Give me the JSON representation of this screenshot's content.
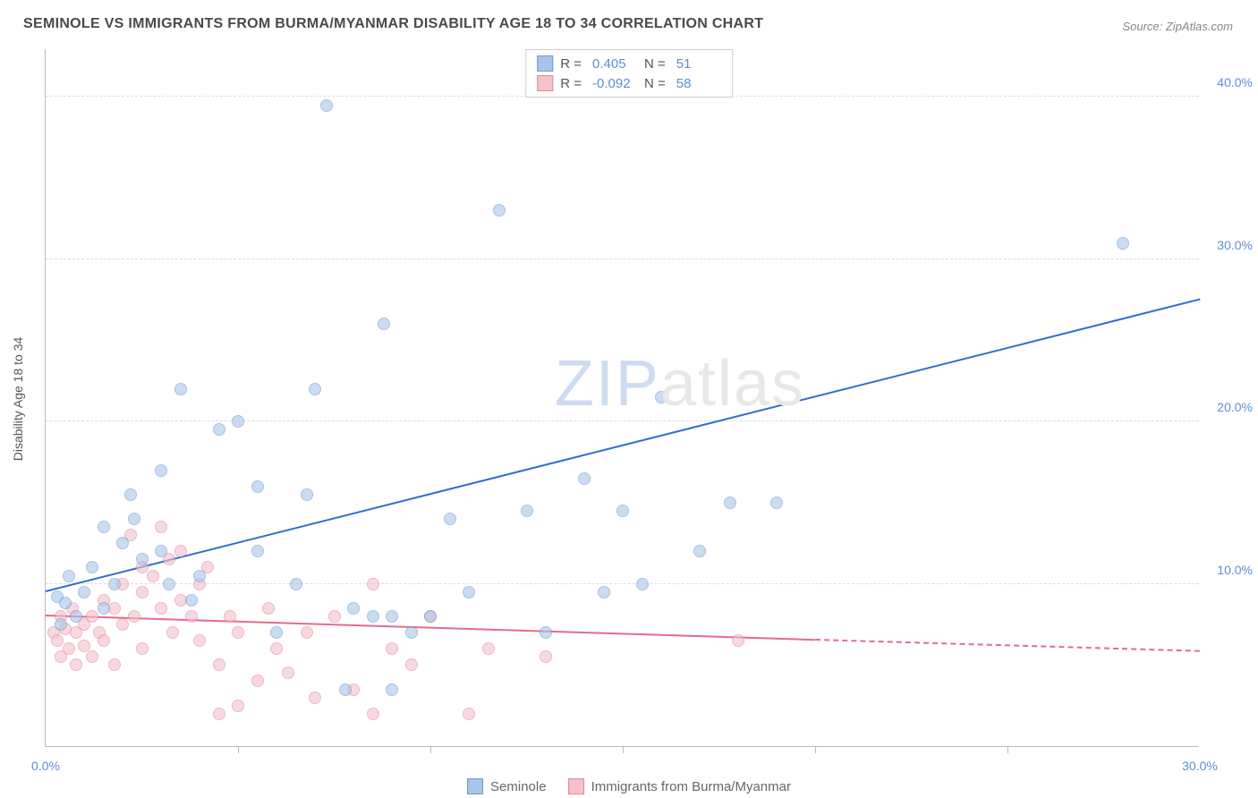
{
  "title": "SEMINOLE VS IMMIGRANTS FROM BURMA/MYANMAR DISABILITY AGE 18 TO 34 CORRELATION CHART",
  "source": "Source: ZipAtlas.com",
  "ylabel": "Disability Age 18 to 34",
  "watermark_part1": "ZIP",
  "watermark_part2": "atlas",
  "chart": {
    "type": "scatter",
    "xlim": [
      0,
      30
    ],
    "ylim": [
      0,
      43
    ],
    "ytick_positions": [
      10,
      20,
      30,
      40
    ],
    "ytick_labels": [
      "10.0%",
      "20.0%",
      "30.0%",
      "40.0%"
    ],
    "xtick_positions": [
      0,
      30
    ],
    "xtick_labels": [
      "0.0%",
      "30.0%"
    ],
    "xtick_marks": [
      5,
      10,
      15,
      20,
      25
    ],
    "grid_color": "#dddddd",
    "background_color": "#ffffff",
    "colors": {
      "series1": "#a8c5e8",
      "series1_border": "#6b9bd1",
      "series2": "#f5c1cb",
      "series2_border": "#e088a0",
      "line1": "#2e6fd0",
      "line2": "#e56b8a",
      "text": "#5b8dd6"
    }
  },
  "legend_top": {
    "rows": [
      {
        "swatch": "blue",
        "r_label": "R =",
        "r_value": "0.405",
        "n_label": "N =",
        "n_value": "51"
      },
      {
        "swatch": "pink",
        "r_label": "R =",
        "r_value": "-0.092",
        "n_label": "N =",
        "n_value": "58"
      }
    ]
  },
  "legend_bottom": {
    "items": [
      {
        "swatch": "blue",
        "label": "Seminole"
      },
      {
        "swatch": "pink",
        "label": "Immigrants from Burma/Myanmar"
      }
    ]
  },
  "regression_lines": {
    "blue": {
      "x1": 0,
      "y1": 9.5,
      "x2": 30,
      "y2": 27.5
    },
    "pink_solid": {
      "x1": 0,
      "y1": 8.0,
      "x2": 20,
      "y2": 6.5
    },
    "pink_dashed": {
      "x1": 20,
      "y1": 6.5,
      "x2": 30,
      "y2": 5.8
    }
  },
  "series1_points": [
    [
      0.3,
      9.2
    ],
    [
      0.4,
      7.5
    ],
    [
      0.5,
      8.8
    ],
    [
      0.6,
      10.5
    ],
    [
      0.8,
      8.0
    ],
    [
      1.0,
      9.5
    ],
    [
      1.2,
      11.0
    ],
    [
      1.5,
      13.5
    ],
    [
      1.5,
      8.5
    ],
    [
      1.8,
      10.0
    ],
    [
      2.0,
      12.5
    ],
    [
      2.2,
      15.5
    ],
    [
      2.3,
      14.0
    ],
    [
      2.5,
      11.5
    ],
    [
      3.0,
      12.0
    ],
    [
      3.0,
      17.0
    ],
    [
      3.2,
      10.0
    ],
    [
      3.5,
      22.0
    ],
    [
      3.8,
      9.0
    ],
    [
      4.0,
      10.5
    ],
    [
      4.5,
      19.5
    ],
    [
      5.0,
      20.0
    ],
    [
      5.5,
      12.0
    ],
    [
      5.5,
      16.0
    ],
    [
      6.0,
      7.0
    ],
    [
      6.5,
      10.0
    ],
    [
      6.8,
      15.5
    ],
    [
      7.0,
      22.0
    ],
    [
      7.3,
      39.5
    ],
    [
      7.8,
      3.5
    ],
    [
      8.0,
      8.5
    ],
    [
      8.5,
      8.0
    ],
    [
      8.8,
      26.0
    ],
    [
      9.0,
      8.0
    ],
    [
      9.0,
      3.5
    ],
    [
      9.5,
      7.0
    ],
    [
      10.0,
      8.0
    ],
    [
      10.5,
      14.0
    ],
    [
      11.0,
      9.5
    ],
    [
      11.8,
      33.0
    ],
    [
      12.5,
      14.5
    ],
    [
      13.0,
      7.0
    ],
    [
      14.0,
      16.5
    ],
    [
      14.5,
      9.5
    ],
    [
      15.0,
      14.5
    ],
    [
      15.5,
      10.0
    ],
    [
      16.0,
      21.5
    ],
    [
      17.0,
      12.0
    ],
    [
      17.8,
      15.0
    ],
    [
      19.0,
      15.0
    ],
    [
      28.0,
      31.0
    ]
  ],
  "series2_points": [
    [
      0.2,
      7.0
    ],
    [
      0.3,
      6.5
    ],
    [
      0.4,
      8.0
    ],
    [
      0.4,
      5.5
    ],
    [
      0.5,
      7.2
    ],
    [
      0.6,
      6.0
    ],
    [
      0.7,
      8.5
    ],
    [
      0.8,
      7.0
    ],
    [
      0.8,
      5.0
    ],
    [
      1.0,
      7.5
    ],
    [
      1.0,
      6.2
    ],
    [
      1.2,
      8.0
    ],
    [
      1.2,
      5.5
    ],
    [
      1.4,
      7.0
    ],
    [
      1.5,
      9.0
    ],
    [
      1.5,
      6.5
    ],
    [
      1.8,
      8.5
    ],
    [
      1.8,
      5.0
    ],
    [
      2.0,
      10.0
    ],
    [
      2.0,
      7.5
    ],
    [
      2.2,
      13.0
    ],
    [
      2.3,
      8.0
    ],
    [
      2.5,
      9.5
    ],
    [
      2.5,
      6.0
    ],
    [
      2.5,
      11.0
    ],
    [
      2.8,
      10.5
    ],
    [
      3.0,
      13.5
    ],
    [
      3.0,
      8.5
    ],
    [
      3.2,
      11.5
    ],
    [
      3.3,
      7.0
    ],
    [
      3.5,
      9.0
    ],
    [
      3.5,
      12.0
    ],
    [
      3.8,
      8.0
    ],
    [
      4.0,
      10.0
    ],
    [
      4.0,
      6.5
    ],
    [
      4.2,
      11.0
    ],
    [
      4.5,
      5.0
    ],
    [
      4.5,
      2.0
    ],
    [
      4.8,
      8.0
    ],
    [
      5.0,
      7.0
    ],
    [
      5.0,
      2.5
    ],
    [
      5.5,
      4.0
    ],
    [
      5.8,
      8.5
    ],
    [
      6.0,
      6.0
    ],
    [
      6.3,
      4.5
    ],
    [
      6.8,
      7.0
    ],
    [
      7.0,
      3.0
    ],
    [
      7.5,
      8.0
    ],
    [
      8.0,
      3.5
    ],
    [
      8.5,
      10.0
    ],
    [
      8.5,
      2.0
    ],
    [
      9.0,
      6.0
    ],
    [
      9.5,
      5.0
    ],
    [
      10.0,
      8.0
    ],
    [
      11.0,
      2.0
    ],
    [
      11.5,
      6.0
    ],
    [
      13.0,
      5.5
    ],
    [
      18.0,
      6.5
    ]
  ]
}
